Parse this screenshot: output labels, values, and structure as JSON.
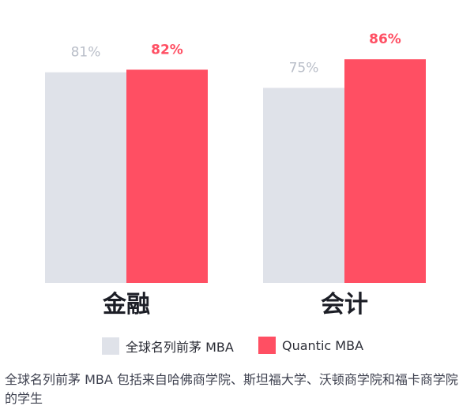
{
  "chart_data": {
    "type": "bar",
    "categories": [
      "金融",
      "会计"
    ],
    "series": [
      {
        "name": "全球名列前茅 MBA",
        "values": [
          81,
          75
        ],
        "labels": [
          "81%",
          "75%"
        ],
        "color": "#dfe2e9",
        "label_color": "#b9bec8"
      },
      {
        "name": "Quantic MBA",
        "values": [
          82,
          86
        ],
        "labels": [
          "82%",
          "86%"
        ],
        "color": "#ff4f63",
        "label_color": "#ff4f63"
      }
    ],
    "ylim": [
      0,
      100
    ],
    "grid": false,
    "legend": "bottom"
  },
  "footnote": "全球名列前茅 MBA 包括来自哈佛商学院、斯坦福大学、沃顿商学院和福卡商学院的学生"
}
